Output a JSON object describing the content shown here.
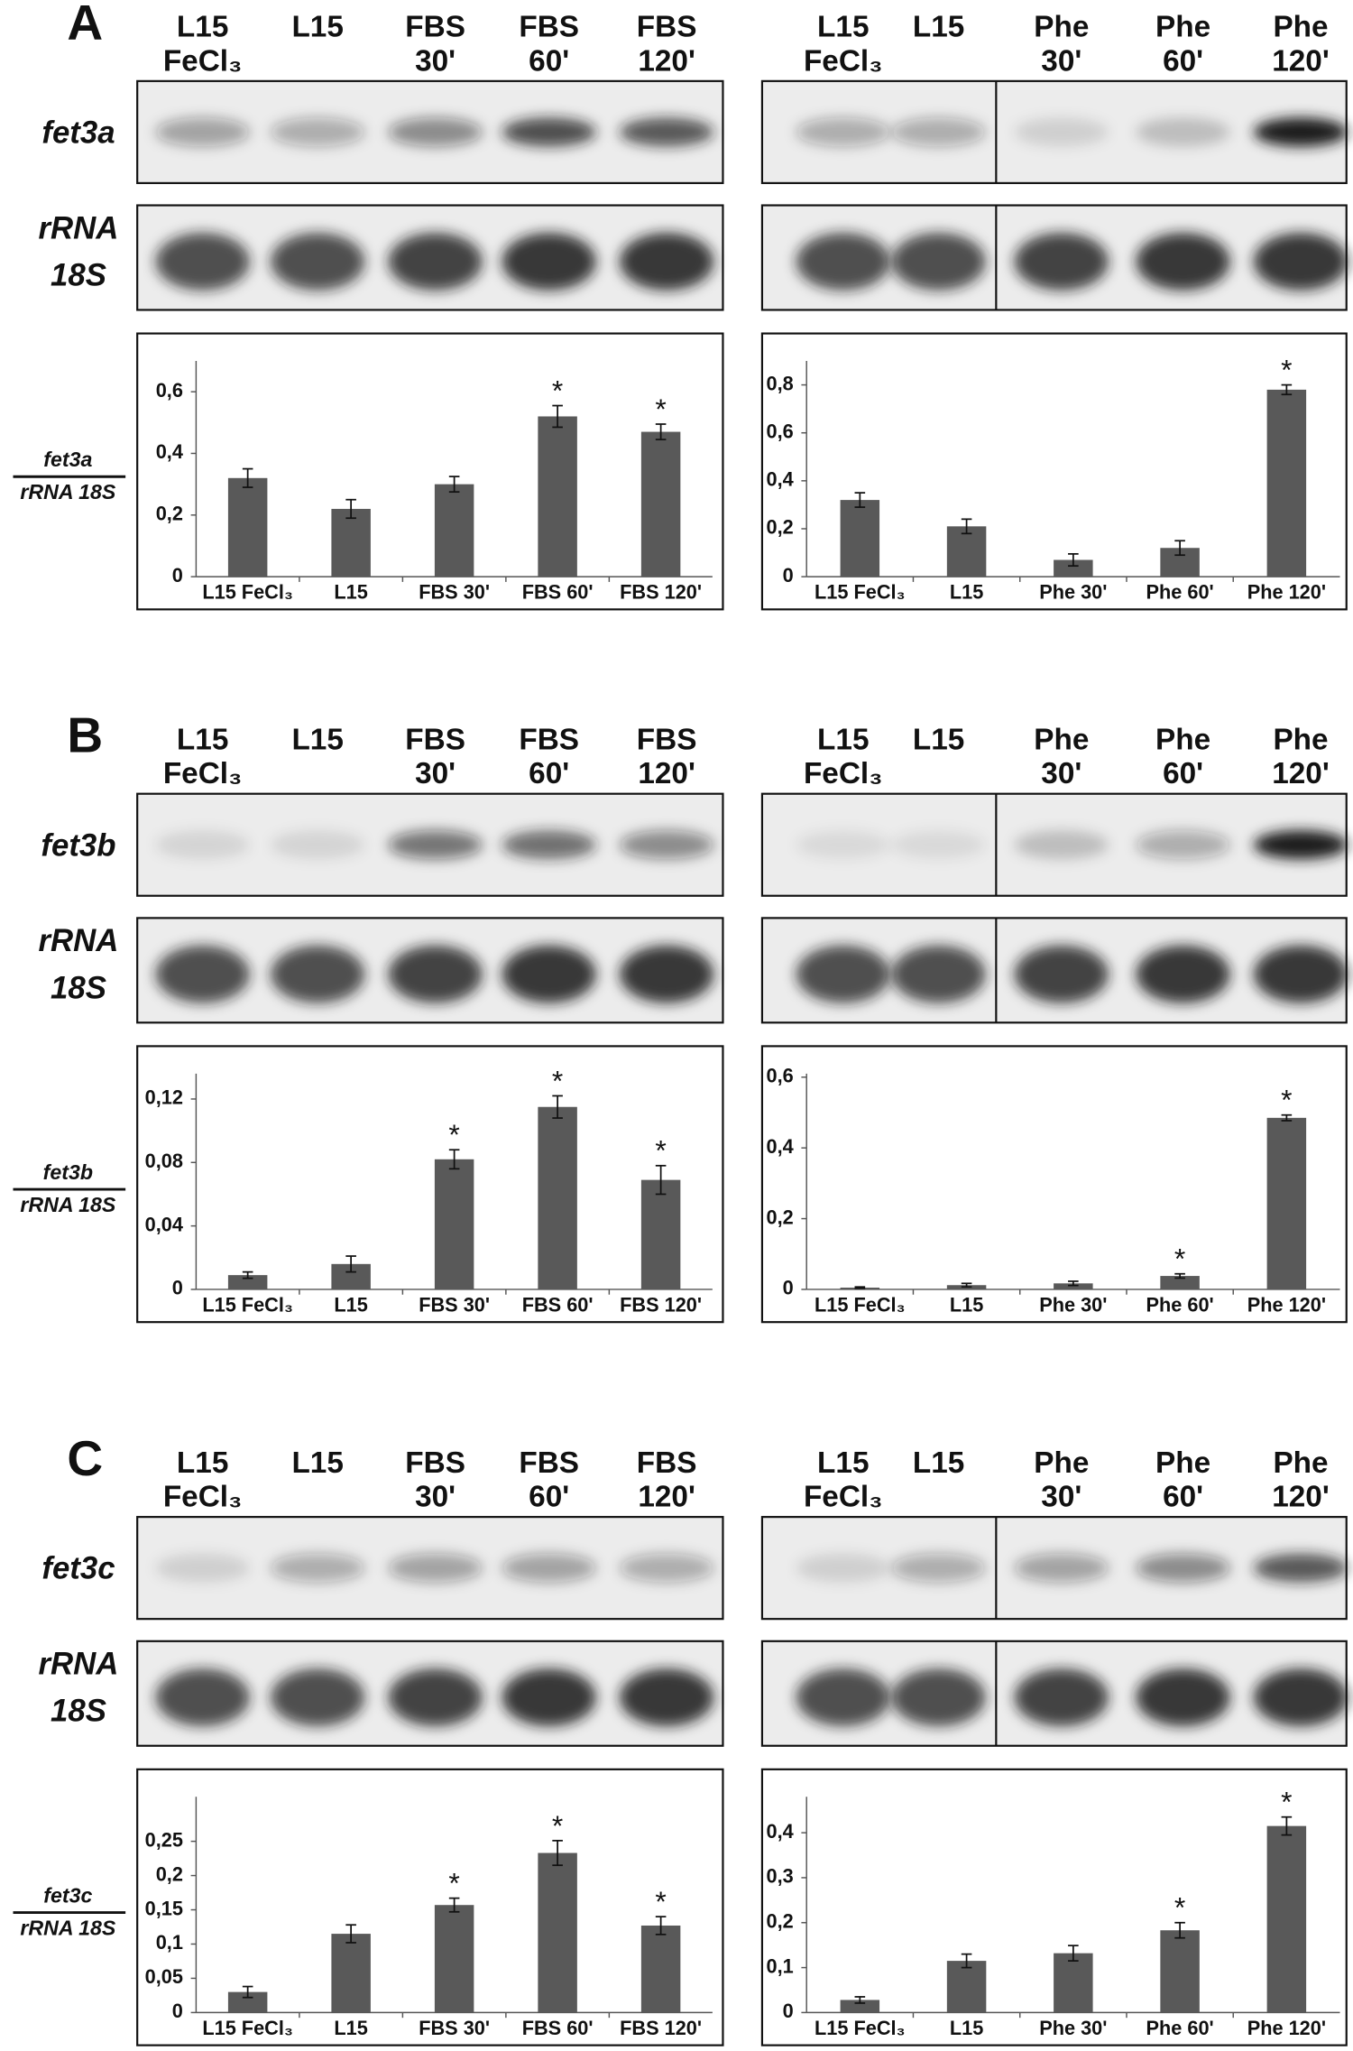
{
  "panels": [
    {
      "letter": "A",
      "gene_label": "fet3a",
      "rrna_label": [
        "rRNA",
        "18S"
      ],
      "left_lanes": [
        [
          "L15",
          "FeCl₃"
        ],
        [
          "L15"
        ],
        [
          "FBS",
          "30'"
        ],
        [
          "FBS",
          "60'"
        ],
        [
          "FBS",
          "120'"
        ]
      ],
      "right_lanes": [
        [
          "L15",
          "FeCl₃"
        ],
        [
          "L15"
        ],
        [
          "Phe",
          "30'"
        ],
        [
          "Phe",
          "60'"
        ],
        [
          "Phe",
          "120'"
        ]
      ]
    },
    {
      "letter": "B",
      "gene_label": "fet3b",
      "rrna_label": [
        "rRNA",
        "18S"
      ],
      "left_lanes": [
        [
          "L15",
          "FeCl₃"
        ],
        [
          "L15"
        ],
        [
          "FBS",
          "30'"
        ],
        [
          "FBS",
          "60'"
        ],
        [
          "FBS",
          "120'"
        ]
      ],
      "right_lanes": [
        [
          "L15",
          "FeCl₃"
        ],
        [
          "L15"
        ],
        [
          "Phe",
          "30'"
        ],
        [
          "Phe",
          "60'"
        ],
        [
          "Phe",
          "120'"
        ]
      ]
    },
    {
      "letter": "C",
      "gene_label": "fet3c",
      "rrna_label": [
        "rRNA",
        "18S"
      ],
      "left_lanes": [
        [
          "L15",
          "FeCl₃"
        ],
        [
          "L15"
        ],
        [
          "FBS",
          "30'"
        ],
        [
          "FBS",
          "60'"
        ],
        [
          "FBS",
          "120'"
        ]
      ],
      "right_lanes": [
        [
          "L15",
          "FeCl₃"
        ],
        [
          "L15"
        ],
        [
          "Phe",
          "30'"
        ],
        [
          "Phe",
          "60'"
        ],
        [
          "Phe",
          "120'"
        ]
      ]
    }
  ],
  "chart_data": [
    {
      "type": "bar",
      "y_label": {
        "numerator": "fet3a",
        "denominator": "rRNA 18S"
      },
      "categories": [
        "L15 FeCl₃",
        "L15",
        "FBS 30'",
        "FBS 60'",
        "FBS 120'"
      ],
      "values": [
        0.32,
        0.22,
        0.3,
        0.52,
        0.47
      ],
      "errors": [
        0.03,
        0.03,
        0.025,
        0.035,
        0.025
      ],
      "color": "#595959",
      "ylim": [
        0,
        0.7
      ],
      "yticks": [
        0,
        {
          "value": 0.2,
          "label": "0,2"
        },
        {
          "value": 0.4,
          "label": "0,4"
        },
        {
          "value": 0.6,
          "label": "0,6"
        }
      ],
      "annotations": [
        {
          "category": "FBS 60'",
          "text": "*"
        },
        {
          "category": "FBS 120'",
          "text": "*"
        }
      ]
    },
    {
      "type": "bar",
      "categories": [
        "L15 FeCl₃",
        "L15",
        "Phe 30'",
        "Phe 60'",
        "Phe 120'"
      ],
      "values": [
        0.32,
        0.21,
        0.07,
        0.12,
        0.78
      ],
      "errors": [
        0.03,
        0.03,
        0.025,
        0.03,
        0.02
      ],
      "color": "#595959",
      "ylim": [
        0,
        0.9
      ],
      "yticks": [
        0,
        {
          "value": 0.2,
          "label": "0,2"
        },
        {
          "value": 0.4,
          "label": "0,4"
        },
        {
          "value": 0.6,
          "label": "0,6"
        },
        {
          "value": 0.8,
          "label": "0,8"
        }
      ],
      "annotations": [
        {
          "category": "Phe 120'",
          "text": "*"
        }
      ]
    },
    {
      "type": "bar",
      "y_label": {
        "numerator": "fet3b",
        "denominator": "rRNA 18S"
      },
      "categories": [
        "L15 FeCl₃",
        "L15",
        "FBS 30'",
        "FBS 60'",
        "FBS 120'"
      ],
      "values": [
        0.009,
        0.016,
        0.082,
        0.115,
        0.069
      ],
      "errors": [
        0.002,
        0.005,
        0.006,
        0.007,
        0.009
      ],
      "color": "#595959",
      "ylim": [
        0,
        0.136
      ],
      "yticks": [
        0,
        {
          "value": 0.04,
          "label": "0,04"
        },
        {
          "value": 0.08,
          "label": "0,08"
        },
        {
          "value": 0.12,
          "label": "0,12"
        }
      ],
      "annotations": [
        {
          "category": "FBS 30'",
          "text": "*"
        },
        {
          "category": "FBS 60'",
          "text": "*"
        },
        {
          "category": "FBS 120'",
          "text": "*"
        }
      ]
    },
    {
      "type": "bar",
      "categories": [
        "L15 FeCl₃",
        "L15",
        "Phe 30'",
        "Phe 60'",
        "Phe 120'"
      ],
      "values": [
        0.005,
        0.012,
        0.017,
        0.038,
        0.485
      ],
      "errors": [
        0.002,
        0.005,
        0.006,
        0.006,
        0.008
      ],
      "color": "#595959",
      "ylim": [
        0,
        0.61
      ],
      "yticks": [
        0,
        {
          "value": 0.2,
          "label": "0,2"
        },
        {
          "value": 0.4,
          "label": "0,4"
        },
        {
          "value": 0.6,
          "label": "0,6"
        }
      ],
      "annotations": [
        {
          "category": "Phe 60'",
          "text": "*"
        },
        {
          "category": "Phe 120'",
          "text": "*"
        }
      ]
    },
    {
      "type": "bar",
      "y_label": {
        "numerator": "fet3c",
        "denominator": "rRNA 18S"
      },
      "categories": [
        "L15 FeCl₃",
        "L15",
        "FBS 30'",
        "FBS 60'",
        "FBS 120'"
      ],
      "values": [
        0.03,
        0.115,
        0.157,
        0.233,
        0.127
      ],
      "errors": [
        0.008,
        0.013,
        0.01,
        0.018,
        0.013
      ],
      "color": "#595959",
      "ylim": [
        0,
        0.315
      ],
      "yticks": [
        0,
        {
          "value": 0.05,
          "label": "0,05"
        },
        {
          "value": 0.1,
          "label": "0,1"
        },
        {
          "value": 0.15,
          "label": "0,15"
        },
        {
          "value": 0.2,
          "label": "0,2"
        },
        {
          "value": 0.25,
          "label": "0,25"
        }
      ],
      "annotations": [
        {
          "category": "FBS 30'",
          "text": "*"
        },
        {
          "category": "FBS 60'",
          "text": "*"
        },
        {
          "category": "FBS 120'",
          "text": "*"
        }
      ]
    },
    {
      "type": "bar",
      "categories": [
        "L15 FeCl₃",
        "L15",
        "Phe 30'",
        "Phe 60'",
        "Phe 120'"
      ],
      "values": [
        0.028,
        0.115,
        0.132,
        0.183,
        0.415
      ],
      "errors": [
        0.007,
        0.015,
        0.017,
        0.017,
        0.02
      ],
      "color": "#595959",
      "ylim": [
        0,
        0.48
      ],
      "yticks": [
        0,
        {
          "value": 0.1,
          "label": "0,1"
        },
        {
          "value": 0.2,
          "label": "0,2"
        },
        {
          "value": 0.3,
          "label": "0,3"
        },
        {
          "value": 0.4,
          "label": "0,4"
        }
      ],
      "annotations": [
        {
          "category": "Phe 60'",
          "text": "*"
        },
        {
          "category": "Phe 120'",
          "text": "*"
        }
      ]
    }
  ]
}
